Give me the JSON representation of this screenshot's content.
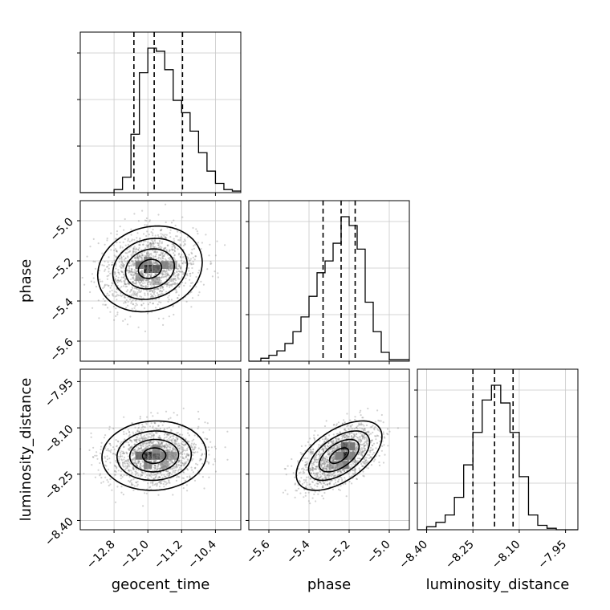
{
  "chart_data": {
    "type": "corner",
    "parameters": [
      "geocent_time",
      "phase",
      "luminosity_distance"
    ],
    "axis_labels": {
      "bottom": [
        "geocent_time",
        "phase",
        "luminosity_distance"
      ],
      "left": [
        "phase",
        "luminosity_distance"
      ]
    },
    "grid": true,
    "colors": {
      "hist_line": "#000000",
      "grid": "#c8c8c8",
      "points": "#7f7f7f"
    },
    "ranges": {
      "geocent_time": [
        -13.6,
        -9.8
      ],
      "phase": [
        -5.7,
        -4.9
      ],
      "luminosity_distance": [
        -8.43,
        -7.91
      ]
    },
    "ticks": {
      "geocent_time": [
        {
          "v": -12.8,
          "label": "−12.8"
        },
        {
          "v": -12.0,
          "label": "−12.0"
        },
        {
          "v": -11.2,
          "label": "−11.2"
        },
        {
          "v": -10.4,
          "label": "−10.4"
        }
      ],
      "phase": [
        {
          "v": -5.6,
          "label": "−5.6"
        },
        {
          "v": -5.4,
          "label": "−5.4"
        },
        {
          "v": -5.2,
          "label": "−5.2"
        },
        {
          "v": -5.0,
          "label": "−5.0"
        }
      ],
      "luminosity_distance": [
        {
          "v": -8.4,
          "label": "−8.40"
        },
        {
          "v": -8.25,
          "label": "−8.25"
        },
        {
          "v": -8.1,
          "label": "−8.10"
        },
        {
          "v": -7.95,
          "label": "−7.95"
        }
      ]
    },
    "histograms": {
      "geocent_time": {
        "bin_edges": [
          -13.6,
          -12.8,
          -12.6,
          -12.4,
          -12.2,
          -12.0,
          -11.8,
          -11.6,
          -11.4,
          -11.2,
          -11.0,
          -10.8,
          -10.6,
          -10.4,
          -10.2,
          -10.0,
          -9.8
        ],
        "counts": [
          0,
          0.02,
          0.1,
          0.38,
          0.78,
          0.94,
          0.92,
          0.8,
          0.6,
          0.52,
          0.4,
          0.26,
          0.14,
          0.06,
          0.02,
          0.01
        ],
        "quantiles": [
          -12.33,
          -11.85,
          -11.18
        ]
      },
      "phase": {
        "bin_edges": [
          -5.7,
          -5.64,
          -5.6,
          -5.56,
          -5.52,
          -5.48,
          -5.44,
          -5.4,
          -5.36,
          -5.32,
          -5.28,
          -5.24,
          -5.2,
          -5.16,
          -5.12,
          -5.08,
          -5.04,
          -5.0,
          -4.9
        ],
        "counts": [
          0,
          0.02,
          0.04,
          0.07,
          0.12,
          0.2,
          0.3,
          0.44,
          0.6,
          0.68,
          0.8,
          0.98,
          0.92,
          0.76,
          0.4,
          0.2,
          0.06,
          0.01
        ],
        "quantiles": [
          -5.33,
          -5.24,
          -5.17
        ]
      },
      "luminosity_distance": {
        "bin_edges": [
          -8.43,
          -8.4,
          -8.37,
          -8.34,
          -8.31,
          -8.28,
          -8.25,
          -8.22,
          -8.19,
          -8.16,
          -8.13,
          -8.1,
          -8.07,
          -8.04,
          -8.01,
          -7.98,
          -7.95,
          -7.91
        ],
        "counts": [
          0,
          0.02,
          0.05,
          0.1,
          0.22,
          0.44,
          0.66,
          0.88,
          0.98,
          0.86,
          0.66,
          0.36,
          0.1,
          0.03,
          0.01,
          0.0,
          0.0
        ],
        "quantiles": [
          -8.25,
          -8.18,
          -8.12
        ]
      }
    },
    "pairs": [
      {
        "x": "geocent_time",
        "y": "phase",
        "mean": [
          -11.95,
          -5.24
        ],
        "sd": [
          0.55,
          0.095
        ],
        "rho": 0.15,
        "cells": [
          [
            -12.0,
            -5.24,
            0.95
          ],
          [
            -11.8,
            -5.24,
            0.7
          ],
          [
            -12.2,
            -5.22,
            0.55
          ],
          [
            -11.6,
            -5.22,
            0.45
          ],
          [
            -12.0,
            -5.2,
            0.45
          ],
          [
            -11.4,
            -5.22,
            0.3
          ],
          [
            -12.2,
            -5.28,
            0.3
          ],
          [
            -11.8,
            -5.3,
            0.25
          ]
        ]
      },
      {
        "x": "geocent_time",
        "y": "luminosity_distance",
        "mean": [
          -11.85,
          -8.19
        ],
        "sd": [
          0.55,
          0.05
        ],
        "rho": 0.05,
        "cells": [
          [
            -12.0,
            -8.19,
            1.0
          ],
          [
            -11.8,
            -8.19,
            0.7
          ],
          [
            -12.2,
            -8.19,
            0.6
          ],
          [
            -11.6,
            -8.19,
            0.5
          ],
          [
            -11.4,
            -8.19,
            0.35
          ],
          [
            -11.8,
            -8.17,
            0.45
          ],
          [
            -12.0,
            -8.22,
            0.45
          ],
          [
            -11.6,
            -8.22,
            0.3
          ]
        ]
      },
      {
        "x": "phase",
        "y": "luminosity_distance",
        "mean": [
          -5.25,
          -8.19
        ],
        "sd": [
          0.095,
          0.05
        ],
        "rho": 0.55,
        "cells": [
          [
            -5.22,
            -8.19,
            1.0
          ],
          [
            -5.22,
            -8.16,
            0.8
          ],
          [
            -5.19,
            -8.16,
            0.55
          ],
          [
            -5.25,
            -8.19,
            0.5
          ],
          [
            -5.22,
            -8.22,
            0.5
          ],
          [
            -5.19,
            -8.19,
            0.45
          ],
          [
            -5.25,
            -8.22,
            0.3
          ],
          [
            -5.28,
            -8.22,
            0.2
          ]
        ]
      }
    ]
  }
}
